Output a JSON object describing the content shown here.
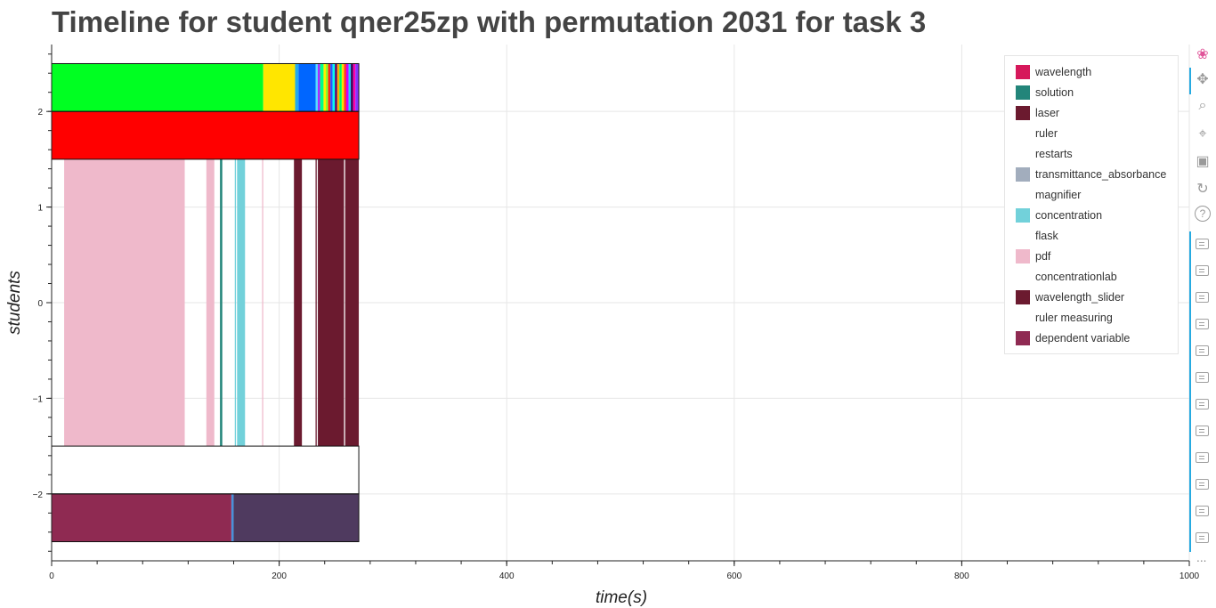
{
  "title": "Timeline for student qner25zp with permutation 2031 for task 3",
  "chart_data": {
    "type": "timeline",
    "xlabel": "time(s)",
    "ylabel": "students",
    "xlim": [
      0,
      1000
    ],
    "ylim": [
      -2.7,
      2.7
    ],
    "x_ticks": [
      0,
      200,
      400,
      600,
      800,
      1000
    ],
    "y_ticks": [
      -2,
      -1,
      0,
      1,
      2
    ],
    "grid": true,
    "legend_position": "top-right",
    "legend": [
      {
        "label": "wavelength",
        "color": "#d6185b"
      },
      {
        "label": "solution",
        "color": "#23857a"
      },
      {
        "label": "laser",
        "color": "#6b1a2f"
      },
      {
        "label": "ruler",
        "color": "#ffffff"
      },
      {
        "label": "restarts",
        "color": "#ffffff"
      },
      {
        "label": "transmittance_absorbance",
        "color": "#a2adbd"
      },
      {
        "label": "magnifier",
        "color": "#ffffff"
      },
      {
        "label": "concentration",
        "color": "#72d1da"
      },
      {
        "label": "flask",
        "color": "#ffffff"
      },
      {
        "label": "pdf",
        "color": "#efb9cb"
      },
      {
        "label": "concentrationlab",
        "color": "#ffffff"
      },
      {
        "label": "wavelength_slider",
        "color": "#6b1a2f"
      },
      {
        "label": "ruler measuring",
        "color": "#ffffff"
      },
      {
        "label": "dependent variable",
        "color": "#8f2a52"
      }
    ],
    "bands": [
      {
        "row": "top",
        "y0": 2.0,
        "y1": 2.5,
        "segments": [
          {
            "x0": 0,
            "x1": 186,
            "color": "#00ff22"
          },
          {
            "x0": 186,
            "x1": 214,
            "color": "#ffe600"
          },
          {
            "x0": 214,
            "x1": 217,
            "color": "#22aaee"
          },
          {
            "x0": 217,
            "x1": 232,
            "color": "#0066ff"
          },
          {
            "x0": 232,
            "x1": 234,
            "color": "#55ddff"
          },
          {
            "x0": 234,
            "x1": 236,
            "color": "#aa22ff"
          },
          {
            "x0": 236,
            "x1": 239,
            "color": "#00ff88"
          },
          {
            "x0": 239,
            "x1": 241,
            "color": "#ffee00"
          },
          {
            "x0": 241,
            "x1": 243,
            "color": "#88ff22"
          },
          {
            "x0": 243,
            "x1": 245,
            "color": "#ff2222"
          },
          {
            "x0": 245,
            "x1": 247,
            "color": "#2255ff"
          },
          {
            "x0": 247,
            "x1": 249,
            "color": "#00ffee"
          },
          {
            "x0": 249,
            "x1": 251,
            "color": "#550066"
          },
          {
            "x0": 251,
            "x1": 253,
            "color": "#ffaa00"
          },
          {
            "x0": 253,
            "x1": 255,
            "color": "#00ff55"
          },
          {
            "x0": 255,
            "x1": 257,
            "color": "#ffdd00"
          },
          {
            "x0": 257,
            "x1": 259,
            "color": "#ff3333"
          },
          {
            "x0": 259,
            "x1": 261,
            "color": "#cc00ff"
          },
          {
            "x0": 261,
            "x1": 263,
            "color": "#22ccff"
          },
          {
            "x0": 263,
            "x1": 265,
            "color": "#330055"
          },
          {
            "x0": 265,
            "x1": 267,
            "color": "#ff00aa"
          },
          {
            "x0": 267,
            "x1": 270,
            "color": "#8833ff"
          }
        ]
      },
      {
        "row": "second",
        "y0": 1.5,
        "y1": 2.0,
        "segments": [
          {
            "x0": 0,
            "x1": 270,
            "color": "#ff0000"
          }
        ]
      },
      {
        "row": "middle",
        "y0": -1.5,
        "y1": 1.5,
        "segments": [
          {
            "x0": 11,
            "x1": 117,
            "color": "#efb9cb"
          },
          {
            "x0": 136,
            "x1": 143,
            "color": "#efb9cb"
          },
          {
            "x0": 148,
            "x1": 150,
            "color": "#23857a"
          },
          {
            "x0": 161,
            "x1": 162,
            "color": "#72d1da"
          },
          {
            "x0": 163,
            "x1": 170,
            "color": "#72d1da"
          },
          {
            "x0": 185,
            "x1": 186,
            "color": "#efb9cb"
          },
          {
            "x0": 213,
            "x1": 220,
            "color": "#6b1a2f"
          },
          {
            "x0": 232,
            "x1": 233,
            "color": "#6b1a2f"
          },
          {
            "x0": 234,
            "x1": 257,
            "color": "#6b1a2f"
          },
          {
            "x0": 258,
            "x1": 270,
            "color": "#6b1a2f"
          }
        ]
      },
      {
        "row": "bottom",
        "y0": -2.5,
        "y1": -2.0,
        "segments": [
          {
            "x0": 0,
            "x1": 158,
            "color": "#8f2a52"
          },
          {
            "x0": 158,
            "x1": 160,
            "color": "#4a90d9"
          },
          {
            "x0": 160,
            "x1": 270,
            "color": "#4f3a5f"
          }
        ]
      }
    ],
    "frames": [
      {
        "x0": 0,
        "x1": 270,
        "y0": 2.0,
        "y1": 2.5
      },
      {
        "x0": 0,
        "x1": 270,
        "y0": 1.5,
        "y1": 2.0
      },
      {
        "x0": 0,
        "x1": 270,
        "y0": -2.0,
        "y1": -1.5
      },
      {
        "x0": 0,
        "x1": 270,
        "y0": -2.5,
        "y1": -2.0
      }
    ]
  },
  "toolbar": {
    "tools": [
      {
        "name": "bokeh-logo-icon"
      },
      {
        "name": "pan-icon"
      },
      {
        "name": "box-zoom-icon"
      },
      {
        "name": "wheel-zoom-icon"
      },
      {
        "name": "save-icon"
      },
      {
        "name": "reset-icon"
      },
      {
        "name": "help-icon"
      }
    ],
    "annotation_tool_count": 12,
    "more_label": "..."
  }
}
